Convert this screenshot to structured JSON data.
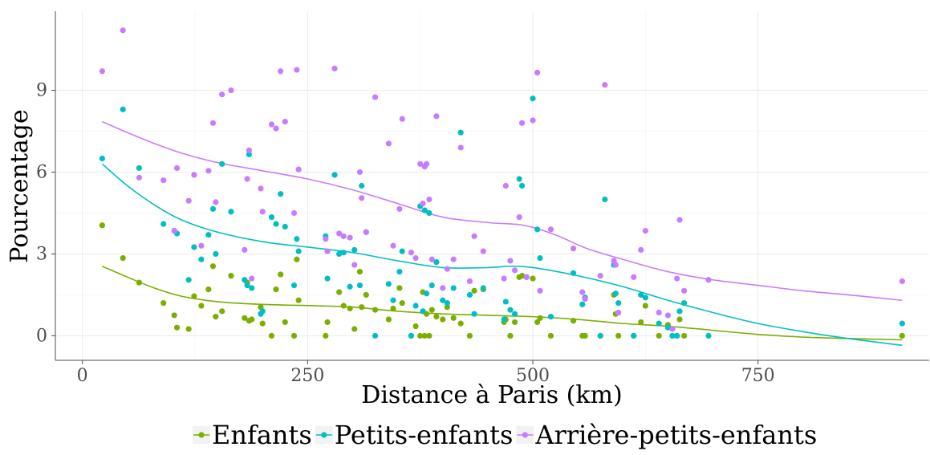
{
  "chart_data": {
    "type": "scatter",
    "title": "",
    "xlabel": "Distance à Paris (km)",
    "ylabel": "Pourcentage",
    "xlim": [
      -30,
      940
    ],
    "ylim": [
      -0.9,
      11.9
    ],
    "xticks": [
      0,
      250,
      500,
      750
    ],
    "yticks": [
      0,
      3,
      6,
      9
    ],
    "grid": true,
    "legend_position": "bottom",
    "series": [
      {
        "name": "Enfants",
        "color": "#7CAE00",
        "points": [
          [
            22,
            4.05
          ],
          [
            45,
            2.85
          ],
          [
            63,
            1.95
          ],
          [
            90,
            1.2
          ],
          [
            102,
            0.75
          ],
          [
            105,
            0.3
          ],
          [
            118,
            0.25
          ],
          [
            124,
            1.45
          ],
          [
            132,
            1.1
          ],
          [
            140,
            1.7
          ],
          [
            145,
            2.55
          ],
          [
            148,
            0.7
          ],
          [
            155,
            0.9
          ],
          [
            165,
            2.2
          ],
          [
            180,
            0.65
          ],
          [
            183,
            1.95
          ],
          [
            185,
            0.55
          ],
          [
            188,
            0.6
          ],
          [
            198,
            1.05
          ],
          [
            200,
            0.45
          ],
          [
            210,
            0
          ],
          [
            215,
            1.7
          ],
          [
            220,
            2.25
          ],
          [
            225,
            0.5
          ],
          [
            235,
            0
          ],
          [
            238,
            2.8
          ],
          [
            240,
            1.3
          ],
          [
            270,
            0
          ],
          [
            272,
            0.5
          ],
          [
            285,
            1.6
          ],
          [
            290,
            1.1
          ],
          [
            297,
            1.0
          ],
          [
            302,
            0.25
          ],
          [
            308,
            2.35
          ],
          [
            310,
            1.05
          ],
          [
            315,
            1.5
          ],
          [
            325,
            0.95
          ],
          [
            340,
            0.6
          ],
          [
            345,
            1.0
          ],
          [
            352,
            1.75
          ],
          [
            355,
            1.2
          ],
          [
            365,
            0
          ],
          [
            370,
            0.35
          ],
          [
            375,
            0
          ],
          [
            378,
            1.6
          ],
          [
            380,
            0
          ],
          [
            382,
            0.8
          ],
          [
            385,
            0
          ],
          [
            388,
            0.95
          ],
          [
            393,
            0.7
          ],
          [
            400,
            0.6
          ],
          [
            405,
            1.05
          ],
          [
            412,
            0.65
          ],
          [
            420,
            0.45
          ],
          [
            430,
            0
          ],
          [
            435,
            1.65
          ],
          [
            445,
            1.7
          ],
          [
            468,
            0.5
          ],
          [
            470,
            0.6
          ],
          [
            475,
            0
          ],
          [
            480,
            0.5
          ],
          [
            485,
            2.15
          ],
          [
            488,
            2.2
          ],
          [
            493,
            2.15
          ],
          [
            500,
            2.1
          ],
          [
            505,
            0.5
          ],
          [
            508,
            0.65
          ],
          [
            520,
            0
          ],
          [
            545,
            0.55
          ],
          [
            555,
            0
          ],
          [
            558,
            0
          ],
          [
            575,
            0
          ],
          [
            590,
            1.5
          ],
          [
            592,
            0.8
          ],
          [
            595,
            0
          ],
          [
            612,
            0
          ],
          [
            620,
            0.5
          ],
          [
            625,
            1.1
          ],
          [
            640,
            0
          ],
          [
            650,
            0.4
          ],
          [
            655,
            0
          ],
          [
            660,
            0
          ],
          [
            663,
            0.6
          ],
          [
            668,
            0
          ],
          [
            910,
            0
          ]
        ],
        "smooth": [
          [
            22,
            2.55
          ],
          [
            50,
            2.15
          ],
          [
            80,
            1.75
          ],
          [
            110,
            1.45
          ],
          [
            150,
            1.25
          ],
          [
            200,
            1.15
          ],
          [
            260,
            1.1
          ],
          [
            300,
            1.05
          ],
          [
            350,
            0.9
          ],
          [
            400,
            0.8
          ],
          [
            450,
            0.75
          ],
          [
            500,
            0.7
          ],
          [
            550,
            0.6
          ],
          [
            600,
            0.45
          ],
          [
            650,
            0.35
          ],
          [
            700,
            0.2
          ],
          [
            750,
            0.05
          ],
          [
            800,
            -0.05
          ],
          [
            850,
            -0.1
          ],
          [
            910,
            -0.15
          ]
        ]
      },
      {
        "name": "Petits-enfants",
        "color": "#00BFC4",
        "points": [
          [
            22,
            6.5
          ],
          [
            45,
            8.3
          ],
          [
            63,
            6.15
          ],
          [
            90,
            4.1
          ],
          [
            102,
            3.85
          ],
          [
            105,
            3.75
          ],
          [
            118,
            2.05
          ],
          [
            124,
            3.25
          ],
          [
            132,
            2.8
          ],
          [
            140,
            3.7
          ],
          [
            145,
            4.65
          ],
          [
            148,
            3.0
          ],
          [
            155,
            6.3
          ],
          [
            165,
            4.55
          ],
          [
            180,
            2.05
          ],
          [
            183,
            1.85
          ],
          [
            185,
            6.65
          ],
          [
            188,
            1.75
          ],
          [
            198,
            0.8
          ],
          [
            200,
            0.9
          ],
          [
            210,
            4.35
          ],
          [
            215,
            4.1
          ],
          [
            220,
            5.2
          ],
          [
            225,
            4.0
          ],
          [
            235,
            1.85
          ],
          [
            238,
            3.55
          ],
          [
            240,
            3.1
          ],
          [
            270,
            3.65
          ],
          [
            272,
            2.1
          ],
          [
            280,
            5.9
          ],
          [
            285,
            3.0
          ],
          [
            290,
            3.05
          ],
          [
            297,
            1.8
          ],
          [
            302,
            3.15
          ],
          [
            308,
            1.85
          ],
          [
            310,
            5.5
          ],
          [
            315,
            3.8
          ],
          [
            325,
            0
          ],
          [
            340,
            1.9
          ],
          [
            345,
            1.3
          ],
          [
            352,
            2.35
          ],
          [
            355,
            3.1
          ],
          [
            365,
            0
          ],
          [
            370,
            1.1
          ],
          [
            375,
            4.75
          ],
          [
            378,
            0.9
          ],
          [
            380,
            4.6
          ],
          [
            382,
            1.55
          ],
          [
            385,
            4.5
          ],
          [
            388,
            1.85
          ],
          [
            393,
            2.7
          ],
          [
            400,
            1.3
          ],
          [
            405,
            1.2
          ],
          [
            412,
            1.75
          ],
          [
            420,
            7.45
          ],
          [
            430,
            1.5
          ],
          [
            435,
            0.8
          ],
          [
            445,
            1.75
          ],
          [
            468,
            0.6
          ],
          [
            470,
            1.25
          ],
          [
            475,
            0.95
          ],
          [
            480,
            0.8
          ],
          [
            485,
            5.75
          ],
          [
            488,
            5.5
          ],
          [
            493,
            2.15
          ],
          [
            500,
            8.7
          ],
          [
            505,
            3.9
          ],
          [
            508,
            2.85
          ],
          [
            520,
            0.7
          ],
          [
            545,
            2.3
          ],
          [
            555,
            1.15
          ],
          [
            558,
            1.4
          ],
          [
            575,
            0
          ],
          [
            580,
            5.0
          ],
          [
            590,
            2.6
          ],
          [
            592,
            1.55
          ],
          [
            595,
            1.2
          ],
          [
            612,
            0
          ],
          [
            620,
            1.5
          ],
          [
            625,
            1.4
          ],
          [
            640,
            0.45
          ],
          [
            650,
            0.3
          ],
          [
            655,
            0
          ],
          [
            660,
            0
          ],
          [
            663,
            0.9
          ],
          [
            668,
            1.2
          ],
          [
            695,
            0
          ],
          [
            910,
            0.45
          ]
        ],
        "smooth": [
          [
            22,
            6.3
          ],
          [
            50,
            5.5
          ],
          [
            80,
            4.8
          ],
          [
            110,
            4.25
          ],
          [
            150,
            3.8
          ],
          [
            200,
            3.45
          ],
          [
            250,
            3.25
          ],
          [
            300,
            3.05
          ],
          [
            350,
            2.75
          ],
          [
            400,
            2.5
          ],
          [
            450,
            2.5
          ],
          [
            475,
            2.55
          ],
          [
            500,
            2.5
          ],
          [
            550,
            2.2
          ],
          [
            600,
            1.8
          ],
          [
            650,
            1.3
          ],
          [
            700,
            0.85
          ],
          [
            750,
            0.45
          ],
          [
            800,
            0.15
          ],
          [
            850,
            -0.1
          ],
          [
            910,
            -0.35
          ]
        ]
      },
      {
        "name": "Arrière-petits-enfants",
        "color": "#C77CFF",
        "points": [
          [
            22,
            9.7
          ],
          [
            45,
            11.2
          ],
          [
            63,
            5.8
          ],
          [
            90,
            5.7
          ],
          [
            102,
            3.85
          ],
          [
            105,
            6.15
          ],
          [
            118,
            4.95
          ],
          [
            124,
            5.9
          ],
          [
            132,
            3.3
          ],
          [
            140,
            6.05
          ],
          [
            145,
            7.8
          ],
          [
            148,
            4.9
          ],
          [
            155,
            8.85
          ],
          [
            165,
            9.0
          ],
          [
            180,
            3.15
          ],
          [
            183,
            5.75
          ],
          [
            185,
            6.8
          ],
          [
            188,
            2.1
          ],
          [
            198,
            5.4
          ],
          [
            200,
            4.55
          ],
          [
            210,
            7.75
          ],
          [
            215,
            7.6
          ],
          [
            220,
            9.7
          ],
          [
            225,
            7.85
          ],
          [
            235,
            4.5
          ],
          [
            238,
            9.75
          ],
          [
            240,
            6.1
          ],
          [
            270,
            3.55
          ],
          [
            272,
            3.1
          ],
          [
            280,
            9.8
          ],
          [
            285,
            3.75
          ],
          [
            290,
            3.65
          ],
          [
            297,
            3.6
          ],
          [
            302,
            2.6
          ],
          [
            308,
            6.0
          ],
          [
            310,
            5.05
          ],
          [
            315,
            3.8
          ],
          [
            325,
            8.75
          ],
          [
            340,
            7.05
          ],
          [
            345,
            3.3
          ],
          [
            352,
            4.65
          ],
          [
            355,
            7.95
          ],
          [
            365,
            3.05
          ],
          [
            370,
            2.85
          ],
          [
            375,
            6.3
          ],
          [
            378,
            4.85
          ],
          [
            380,
            6.2
          ],
          [
            382,
            6.3
          ],
          [
            385,
            5.0
          ],
          [
            388,
            2.8
          ],
          [
            393,
            8.05
          ],
          [
            400,
            1.75
          ],
          [
            405,
            2.45
          ],
          [
            412,
            2.8
          ],
          [
            420,
            6.9
          ],
          [
            430,
            2.0
          ],
          [
            435,
            3.65
          ],
          [
            445,
            3.1
          ],
          [
            468,
            2.1
          ],
          [
            470,
            5.5
          ],
          [
            475,
            2.75
          ],
          [
            480,
            2.4
          ],
          [
            485,
            4.35
          ],
          [
            488,
            7.8
          ],
          [
            493,
            2.15
          ],
          [
            500,
            7.9
          ],
          [
            505,
            9.65
          ],
          [
            508,
            1.65
          ],
          [
            520,
            3.9
          ],
          [
            545,
            3.2
          ],
          [
            555,
            1.6
          ],
          [
            558,
            1.35
          ],
          [
            575,
            2.2
          ],
          [
            580,
            9.2
          ],
          [
            590,
            2.75
          ],
          [
            592,
            2.6
          ],
          [
            595,
            0.85
          ],
          [
            612,
            2.15
          ],
          [
            620,
            3.15
          ],
          [
            625,
            3.85
          ],
          [
            640,
            0.85
          ],
          [
            650,
            0.75
          ],
          [
            655,
            0.25
          ],
          [
            660,
            2.1
          ],
          [
            663,
            4.25
          ],
          [
            668,
            1.65
          ],
          [
            695,
            2.05
          ],
          [
            910,
            2.0
          ]
        ],
        "smooth": [
          [
            22,
            7.85
          ],
          [
            50,
            7.45
          ],
          [
            80,
            7.05
          ],
          [
            110,
            6.7
          ],
          [
            150,
            6.35
          ],
          [
            200,
            6.05
          ],
          [
            250,
            5.75
          ],
          [
            300,
            5.35
          ],
          [
            350,
            4.85
          ],
          [
            400,
            4.35
          ],
          [
            450,
            4.15
          ],
          [
            490,
            4.05
          ],
          [
            525,
            3.7
          ],
          [
            560,
            3.2
          ],
          [
            600,
            2.8
          ],
          [
            650,
            2.35
          ],
          [
            700,
            2.05
          ],
          [
            750,
            1.85
          ],
          [
            800,
            1.65
          ],
          [
            850,
            1.5
          ],
          [
            910,
            1.3
          ]
        ]
      }
    ]
  }
}
